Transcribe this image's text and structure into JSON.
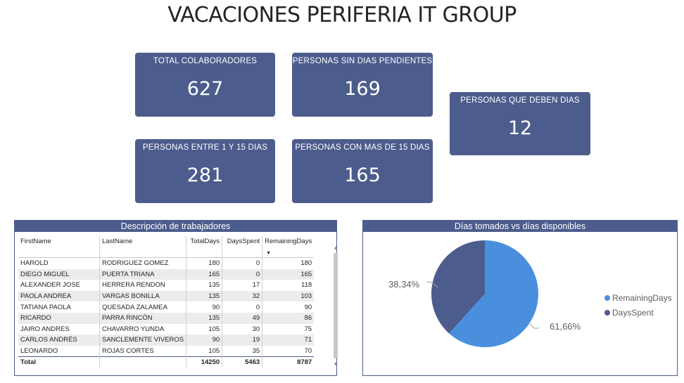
{
  "dashboard": {
    "title": "VACACIONES PERIFERIA IT GROUP"
  },
  "cards": [
    {
      "label": "TOTAL COLABORADORES",
      "value": "627"
    },
    {
      "label": "PERSONAS SIN DIAS PENDIENTES",
      "value": "169"
    },
    {
      "label": "PERSONAS QUE DEBEN DIAS",
      "value": "12"
    },
    {
      "label": "PERSONAS ENTRE 1 Y 15 DIAS",
      "value": "281"
    },
    {
      "label": "PERSONAS CON MAS DE 15 DIAS",
      "value": "165"
    }
  ],
  "table": {
    "title": "Descripción de trabajadores",
    "columns": [
      "FirstName",
      "LastName",
      "TotalDays",
      "DaysSpent",
      "RemainingDays"
    ],
    "rows": [
      [
        "HAROLD",
        "RODRIGUEZ GOMEZ",
        "180",
        "0",
        "180"
      ],
      [
        "DIEGO MIGUEL",
        "PUERTA TRIANA",
        "165",
        "0",
        "165"
      ],
      [
        "ALEXANDER JOSE",
        "HERRERA RENDON",
        "135",
        "17",
        "118"
      ],
      [
        "PAOLA ANDREA",
        "VARGAS BONILLA",
        "135",
        "32",
        "103"
      ],
      [
        "TATIANA PAOLA",
        "QUESADA ZALAMEA",
        "90",
        "0",
        "90"
      ],
      [
        "RICARDO",
        "PARRA RINCÓN",
        "135",
        "49",
        "86"
      ],
      [
        "JAIRO ANDRES",
        "CHAVARRO YUNDA",
        "105",
        "30",
        "75"
      ],
      [
        "CARLOS ANDRÉS",
        "SANCLEMENTE VIVEROS",
        "90",
        "19",
        "71"
      ],
      [
        "LEONARDO",
        "ROJAS CORTES",
        "105",
        "35",
        "70"
      ]
    ],
    "total": {
      "label": "Total",
      "total_days": "14250",
      "days_spent": "5463",
      "remaining_days": "8787"
    },
    "sort_icon": "sort-descending-icon"
  },
  "chart": {
    "title": "Días tomados vs días disponibles",
    "chart_data": {
      "type": "pie",
      "title": "Días tomados vs días disponibles",
      "slices": [
        {
          "name": "RemainingDays",
          "value": 61.66,
          "label": "61,66%",
          "color": "#4a8fdd"
        },
        {
          "name": "DaysSpent",
          "value": 38.34,
          "label": "38,34%",
          "color": "#4c5c8c"
        }
      ],
      "legend": "right"
    }
  }
}
